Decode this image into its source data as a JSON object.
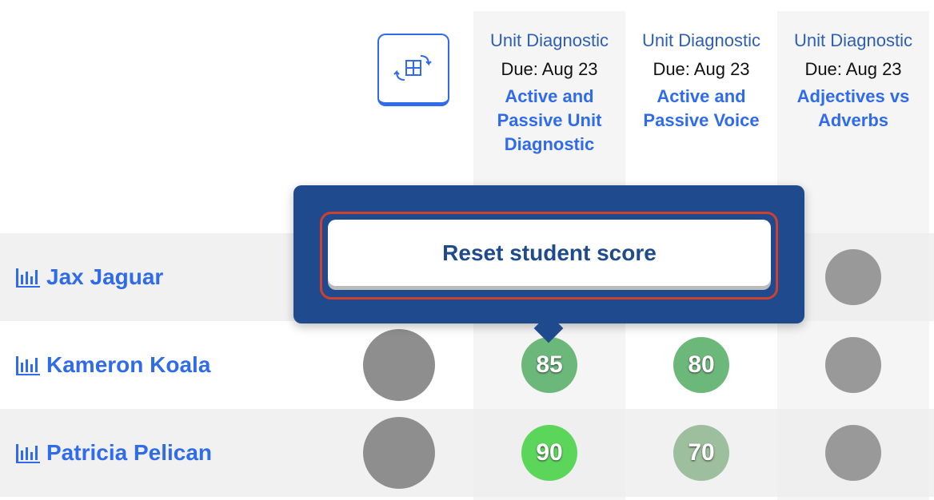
{
  "columns": [
    {
      "type": "Unit Diagnostic",
      "due": "Due: Aug 23",
      "title": "Active and Passive Unit Diagnostic"
    },
    {
      "type": "Unit Diagnostic",
      "due": "Due: Aug 23",
      "title": "Active and Passive Voice"
    },
    {
      "type": "Unit Diagnostic",
      "due": "Due: Aug 23",
      "title": "Adjectives vs Adverbs"
    }
  ],
  "rows": [
    {
      "name": "Jax Jaguar",
      "scores": [
        null,
        null,
        null
      ]
    },
    {
      "name": "Kameron Koala",
      "scores": [
        85,
        80,
        null
      ]
    },
    {
      "name": "Patricia Pelican",
      "scores": [
        90,
        70,
        null
      ]
    }
  ],
  "popover": {
    "button": "Reset student score"
  }
}
